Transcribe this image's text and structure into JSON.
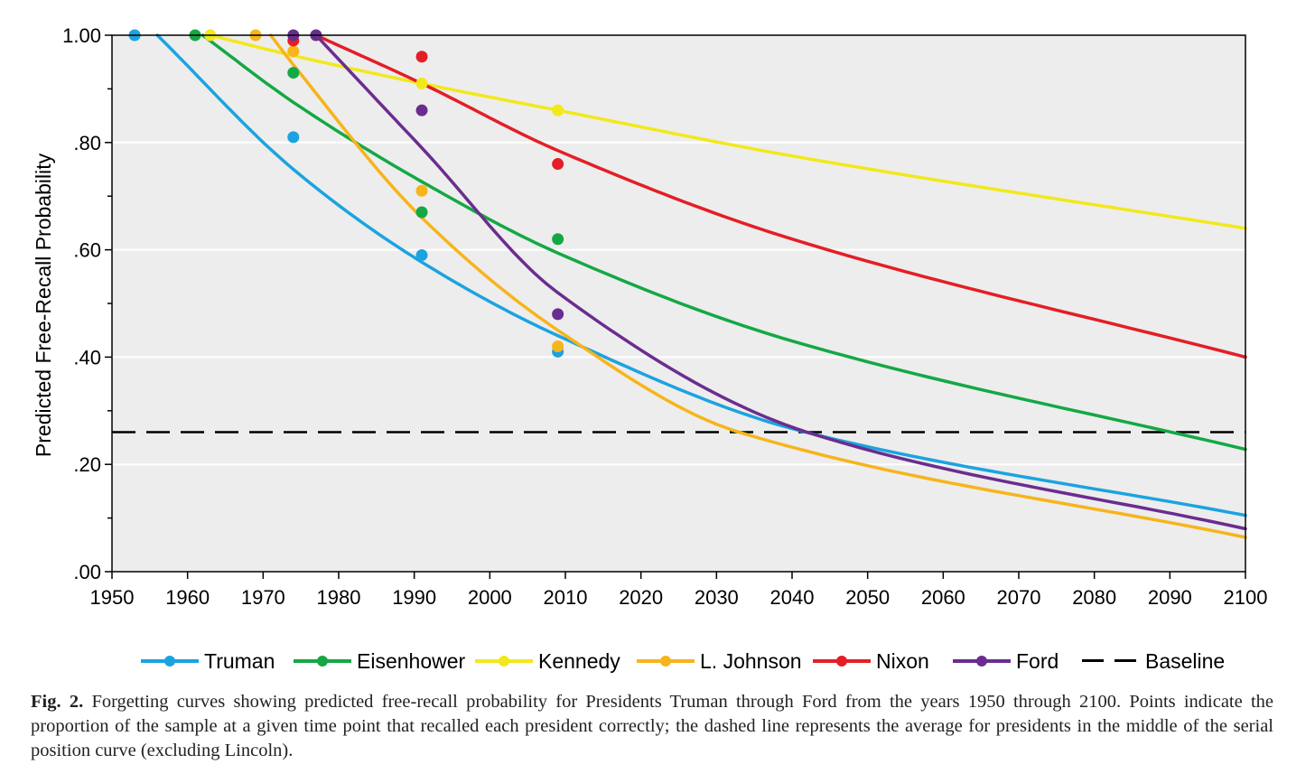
{
  "chart_data": {
    "type": "line",
    "ylabel": "Predicted Free-Recall Probability",
    "xlabel": "",
    "xlim": [
      1950,
      2100
    ],
    "ylim": [
      0,
      1
    ],
    "x_ticks": [
      "1950",
      "1960",
      "1970",
      "1980",
      "1990",
      "2000",
      "2010",
      "2020",
      "2030",
      "2040",
      "2050",
      "2060",
      "2070",
      "2080",
      "2090",
      "2100"
    ],
    "y_ticks": [
      {
        "value": 0,
        "label": ".00"
      },
      {
        "value": 0.2,
        "label": ".20"
      },
      {
        "value": 0.4,
        "label": ".40"
      },
      {
        "value": 0.6,
        "label": ".60"
      },
      {
        "value": 0.8,
        "label": ".80"
      },
      {
        "value": 1,
        "label": "1.00"
      }
    ],
    "grid": "horizontal",
    "legend_position": "bottom",
    "baseline": {
      "name": "Baseline",
      "value": 0.26
    },
    "series": [
      {
        "name": "Truman",
        "color": "#1ba3e0",
        "curve": [
          [
            1956,
            1.0
          ],
          [
            1974,
            0.75
          ],
          [
            1991,
            0.577
          ],
          [
            2009,
            0.44
          ],
          [
            2041,
            0.263
          ],
          [
            2100,
            0.105
          ]
        ],
        "points": [
          [
            1953,
            1.0
          ],
          [
            1974,
            0.81
          ],
          [
            1991,
            0.59
          ],
          [
            2009,
            0.41
          ]
        ]
      },
      {
        "name": "Eisenhower",
        "color": "#14a844",
        "curve": [
          [
            1962,
            1.0
          ],
          [
            1974,
            0.875
          ],
          [
            1991,
            0.727
          ],
          [
            2009,
            0.594
          ],
          [
            2040,
            0.43
          ],
          [
            2100,
            0.228
          ]
        ],
        "points": [
          [
            1961,
            1.0
          ],
          [
            1974,
            0.93
          ],
          [
            1991,
            0.67
          ],
          [
            2009,
            0.62
          ]
        ]
      },
      {
        "name": "Kennedy",
        "color": "#f2e81b",
        "curve": [
          [
            1963,
            1.0
          ],
          [
            1974,
            0.962
          ],
          [
            1991,
            0.91
          ],
          [
            2009,
            0.86
          ],
          [
            2040,
            0.775
          ],
          [
            2100,
            0.64
          ]
        ],
        "points": [
          [
            1963,
            1.0
          ],
          [
            1974,
            0.97
          ],
          [
            1991,
            0.91
          ],
          [
            2009,
            0.86
          ]
        ]
      },
      {
        "name": "L. Johnson",
        "color": "#f7b41b",
        "curve": [
          [
            1971,
            1.0
          ],
          [
            1974,
            0.945
          ],
          [
            1991,
            0.66
          ],
          [
            2009,
            0.45
          ],
          [
            2033,
            0.26
          ],
          [
            2100,
            0.064
          ]
        ],
        "points": [
          [
            1969,
            1.0
          ],
          [
            1974,
            0.97
          ],
          [
            1991,
            0.71
          ],
          [
            2009,
            0.42
          ]
        ]
      },
      {
        "name": "Nixon",
        "color": "#e41e26",
        "curve": [
          [
            1977,
            1.0
          ],
          [
            1991,
            0.91
          ],
          [
            2009,
            0.785
          ],
          [
            2040,
            0.62
          ],
          [
            2100,
            0.4
          ]
        ],
        "points": [
          [
            1974,
            0.99
          ],
          [
            1991,
            0.96
          ],
          [
            2009,
            0.76
          ]
        ]
      },
      {
        "name": "Ford",
        "color": "#6a2d8f",
        "curve": [
          [
            1977,
            1.0
          ],
          [
            1991,
            0.79
          ],
          [
            2009,
            0.52
          ],
          [
            2042,
            0.26
          ],
          [
            2100,
            0.08
          ]
        ],
        "points": [
          [
            1974,
            1.0
          ],
          [
            1977,
            1.0
          ],
          [
            1991,
            0.86
          ],
          [
            2009,
            0.48
          ]
        ]
      }
    ]
  },
  "caption": {
    "label": "Fig. 2.",
    "text": "Forgetting curves showing predicted free-recall probability for Presidents Truman through Ford from the years 1950 through 2100. Points indicate the proportion of the sample at a given time point that recalled each president correctly; the dashed line represents the average for presidents in the middle of the serial position curve (excluding Lincoln)."
  }
}
